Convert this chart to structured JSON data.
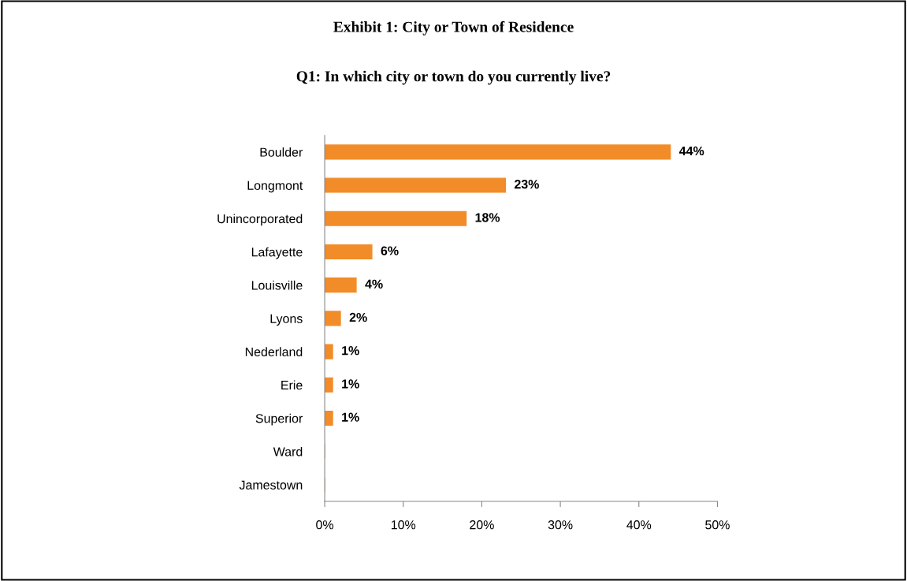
{
  "chart_data": {
    "type": "bar",
    "orientation": "horizontal",
    "title": "Exhibit 1: City or Town of Residence",
    "subtitle": "Q1: In which city or town do you currently live?",
    "categories": [
      "Boulder",
      "Longmont",
      "Unincorporated",
      "Lafayette",
      "Louisville",
      "Lyons",
      "Nederland",
      "Erie",
      "Superior",
      "Ward",
      "Jamestown"
    ],
    "values": [
      44,
      23,
      18,
      6,
      4,
      2,
      1,
      1,
      1,
      0,
      0
    ],
    "value_labels": [
      "44%",
      "23%",
      "18%",
      "6%",
      "4%",
      "2%",
      "1%",
      "1%",
      "1%",
      null,
      null
    ],
    "color": "#f28c28",
    "xlim": [
      0,
      50
    ],
    "xticks": [
      {
        "value": 0,
        "label": "0%"
      },
      {
        "value": 10,
        "label": "10%"
      },
      {
        "value": 20,
        "label": "20%"
      },
      {
        "value": 30,
        "label": "30%"
      },
      {
        "value": 40,
        "label": "40%"
      },
      {
        "value": 50,
        "label": "50%"
      }
    ],
    "grid": false,
    "legend": false
  }
}
